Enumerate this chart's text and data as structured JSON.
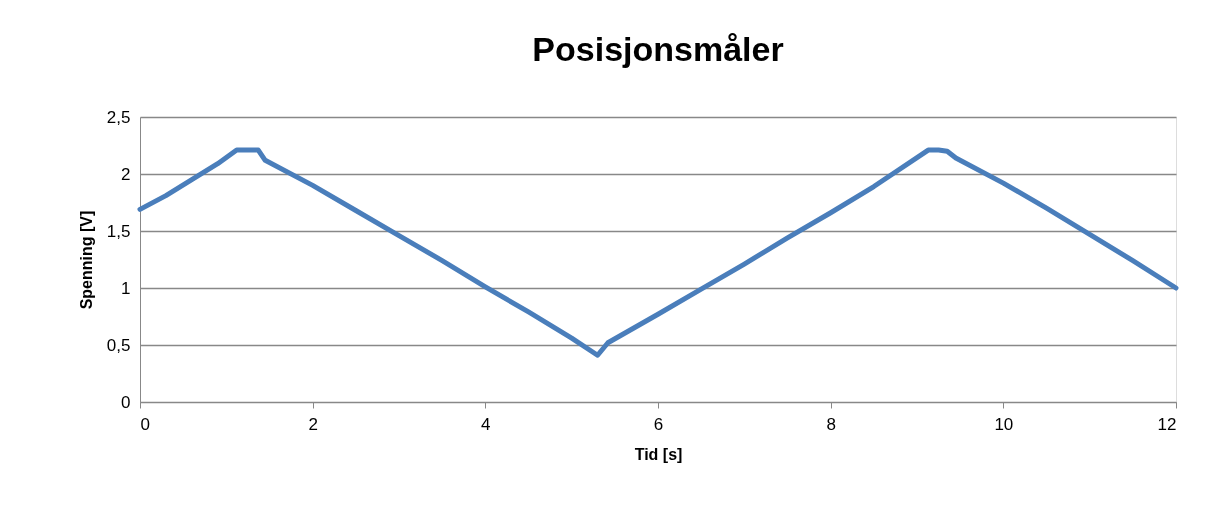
{
  "chart_data": {
    "type": "line",
    "title": "Posisjonsmåler",
    "xlabel": "Tid [s]",
    "ylabel": "Spenning [V]",
    "series": [
      {
        "color": "#4a7ebb",
        "x": [
          0,
          0.3,
          0.6,
          0.9,
          1.12,
          1.25,
          1.37,
          1.45,
          2,
          2.5,
          3,
          3.5,
          4,
          4.5,
          5,
          5.3,
          5.42,
          6,
          6.5,
          7,
          7.5,
          8,
          8.5,
          9.13,
          9.25,
          9.35,
          9.45,
          10,
          10.5,
          11,
          11.5,
          12
        ],
        "values": [
          1.69,
          1.81,
          1.95,
          2.09,
          2.21,
          2.21,
          2.21,
          2.12,
          1.9,
          1.68,
          1.46,
          1.24,
          1.01,
          0.79,
          0.56,
          0.41,
          0.52,
          0.77,
          0.99,
          1.21,
          1.44,
          1.66,
          1.89,
          2.21,
          2.21,
          2.2,
          2.14,
          1.92,
          1.7,
          1.47,
          1.24,
          1.0
        ]
      }
    ],
    "xlim": [
      0,
      12
    ],
    "xticks": [
      0,
      2,
      4,
      6,
      8,
      10,
      12
    ],
    "ylim": [
      0,
      2.5
    ],
    "yticks": [
      0,
      {
        "value": 0.5,
        "label": "0,5"
      },
      1,
      {
        "value": 1.5,
        "label": "1,5"
      },
      2,
      {
        "value": 2.5,
        "label": "2,5"
      }
    ],
    "grid": "y",
    "marker": "none",
    "line_style": "solid"
  }
}
